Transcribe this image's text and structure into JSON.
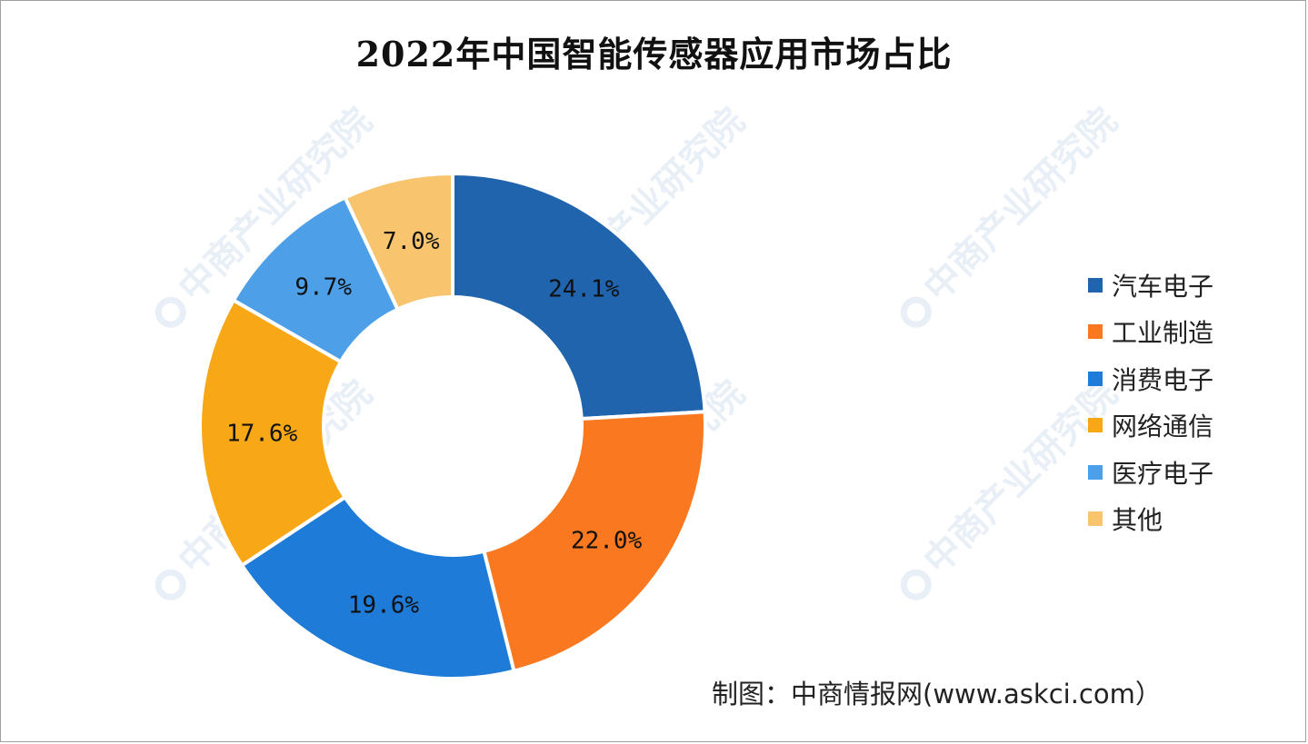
{
  "title": "2022年中国智能传感器应用市场占比",
  "source": "制图：中商情报网(www.askci.com）",
  "watermark": {
    "text1": "中商产业研究院"
  },
  "chart_data": {
    "type": "pie",
    "donut": true,
    "title": "2022年中国智能传感器应用市场占比",
    "legend_position": "right",
    "categories": [
      "汽车电子",
      "工业制造",
      "消费电子",
      "网络通信",
      "医疗电子",
      "其他"
    ],
    "values": [
      24.1,
      22.0,
      19.6,
      17.6,
      9.7,
      7.0
    ],
    "labels": [
      "24.1%",
      "22.0%",
      "19.6%",
      "17.6%",
      "9.7%",
      "7.0%"
    ],
    "colors": [
      "#1f64ad",
      "#fa7820",
      "#1e7bd8",
      "#f8a816",
      "#4da0e8",
      "#f8c46e"
    ]
  }
}
